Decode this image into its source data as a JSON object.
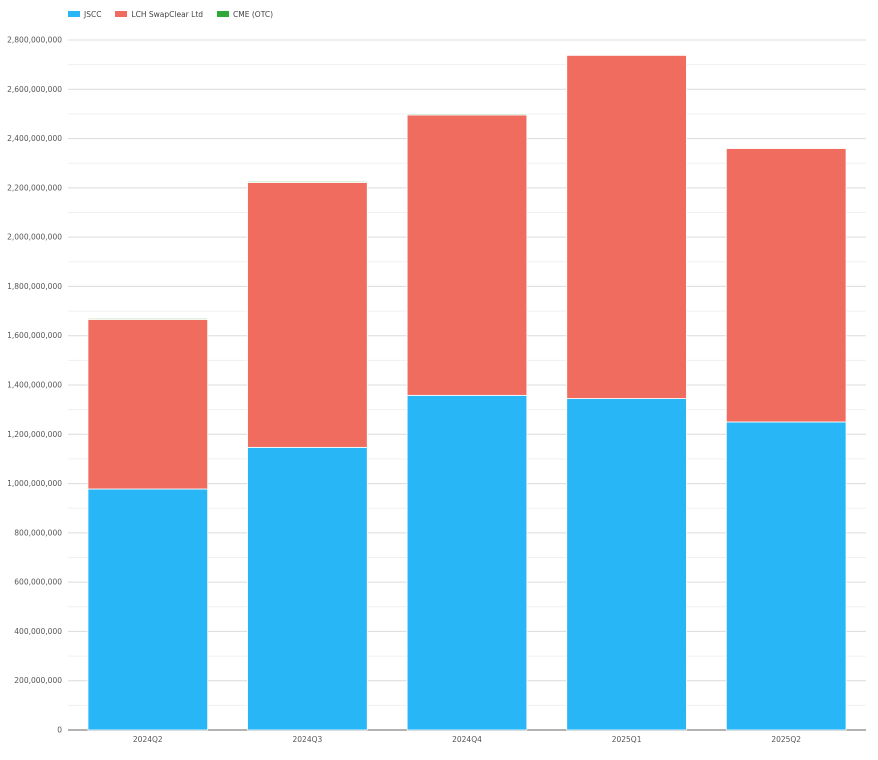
{
  "chart_data": {
    "type": "bar",
    "stacked": true,
    "title": "",
    "xlabel": "",
    "ylabel": "",
    "ylim": [
      0,
      2800000000
    ],
    "ytick_step": 200000000,
    "grid": true,
    "legend_position": "top-left",
    "categories": [
      "2024Q2",
      "2024Q3",
      "2024Q4",
      "2025Q1",
      "2025Q2"
    ],
    "series": [
      {
        "name": "JSCC",
        "color": "#29b6f6",
        "values": [
          978000000,
          1147000000,
          1358000000,
          1345000000,
          1250000000
        ]
      },
      {
        "name": "LCH SwapClear Ltd",
        "color": "#ef6c5f",
        "values": [
          688000000,
          1075000000,
          1138000000,
          1393000000,
          1110000000
        ]
      },
      {
        "name": "CME (OTC)",
        "color": "#2ea836",
        "values": [
          4000000,
          4000000,
          4000000,
          3000000,
          3000000
        ]
      }
    ]
  }
}
